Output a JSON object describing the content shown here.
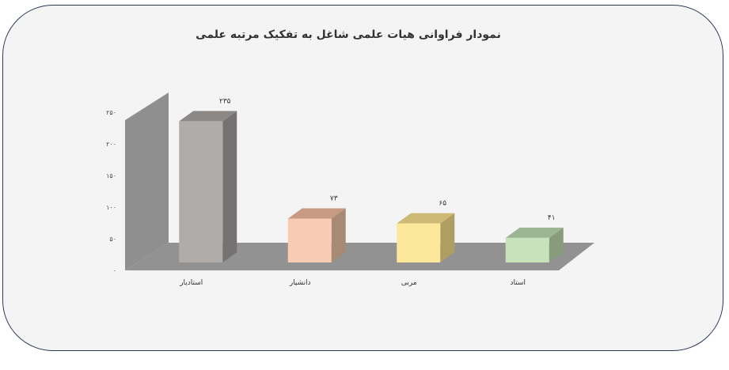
{
  "chart_data": {
    "type": "bar",
    "style": "3d-column",
    "title": "نمودار فراوانی هیات علمی شاغل به تفکیک مرتبه علمی",
    "xlabel": "",
    "ylabel": "",
    "ylim": [
      0,
      250
    ],
    "yticks": [
      0,
      50,
      100,
      150,
      200,
      250
    ],
    "ytick_labels": [
      "۰",
      "۵۰",
      "۱۰۰",
      "۱۵۰",
      "۲۰۰",
      "۲۵۰"
    ],
    "categories": [
      "استادیار",
      "دانشیار",
      "مربی",
      "استاد"
    ],
    "values": [
      235,
      73,
      65,
      41
    ],
    "value_labels": [
      "۲۳۵",
      "۷۳",
      "۶۵",
      "۴۱"
    ],
    "grid": false,
    "legend": "none",
    "colors": [
      {
        "front": "#b0aca9",
        "side": "#767272",
        "top": "#8c8886"
      },
      {
        "front": "#f7ccb2",
        "side": "#a88974",
        "top": "#c79a82"
      },
      {
        "front": "#fde79a",
        "side": "#ae9e62",
        "top": "#cdb874"
      },
      {
        "front": "#c8e2bb",
        "side": "#889c7d",
        "top": "#9cb592"
      }
    ],
    "wall_color": "#8f8f8f",
    "floor_color": "#929292"
  }
}
